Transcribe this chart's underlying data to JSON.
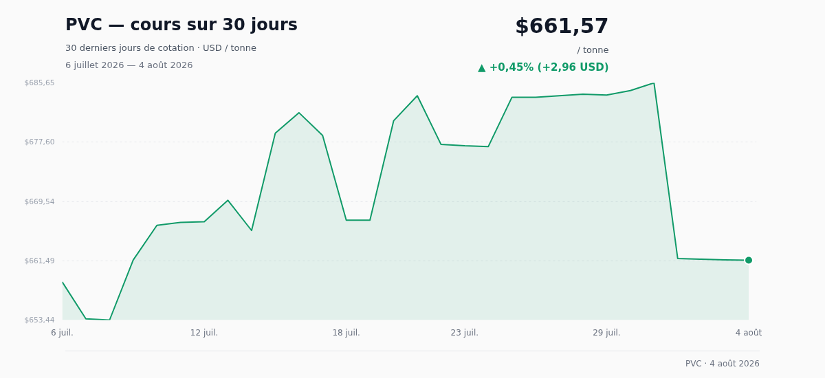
{
  "chart_data": {
    "type": "area",
    "title": "PVC — cours sur 30 jours",
    "subtitle": "30 derniers jours de cotation · USD / tonne",
    "annotations": [
      "6 juillet 2026 — 4 août 2026",
      "$661,57",
      "/ tonne",
      "▲ +0,45% (+2,96 USD)",
      "PVC · 4 août 2026"
    ],
    "x": [
      "2026-07-06",
      "2026-07-07",
      "2026-07-08",
      "2026-07-09",
      "2026-07-10",
      "2026-07-11",
      "2026-07-12",
      "2026-07-13",
      "2026-07-14",
      "2026-07-15",
      "2026-07-16",
      "2026-07-17",
      "2026-07-18",
      "2026-07-19",
      "2026-07-20",
      "2026-07-21",
      "2026-07-22",
      "2026-07-23",
      "2026-07-24",
      "2026-07-25",
      "2026-07-26",
      "2026-07-27",
      "2026-07-28",
      "2026-07-29",
      "2026-07-30",
      "2026-07-31",
      "2026-08-01",
      "2026-08-02",
      "2026-08-03",
      "2026-08-04"
    ],
    "series": [
      {
        "color": "#109a68",
        "values": [
          658.61,
          653.6,
          653.44,
          661.6,
          666.3,
          666.7,
          666.8,
          669.7,
          665.6,
          678.8,
          681.6,
          678.5,
          667.0,
          667.0,
          680.5,
          683.9,
          677.3,
          677.1,
          677.0,
          683.7,
          683.7,
          683.9,
          684.1,
          684.0,
          684.6,
          685.65,
          661.8,
          661.7,
          661.6,
          661.57
        ]
      },
      {
        "type": "scatter",
        "color": "#109a68",
        "x": [
          "2026-08-04"
        ],
        "values": [
          661.57
        ]
      }
    ],
    "xlim": [
      "2026-07-06",
      "2026-08-04T08:00"
    ],
    "xticks": [
      {
        "value": "2026-07-06",
        "label": "6 juil."
      },
      {
        "value": "2026-07-12",
        "label": "12 juil."
      },
      {
        "value": "2026-07-18",
        "label": "18 juil."
      },
      {
        "value": "2026-07-23",
        "label": "23 juil."
      },
      {
        "value": "2026-07-29",
        "label": "29 juil."
      },
      {
        "value": "2026-08-04",
        "label": "4 août"
      }
    ],
    "ylim": [
      653.44,
      685.65
    ],
    "yticks": [
      {
        "value": 653.44,
        "label": "$653,44"
      },
      {
        "value": 661.49,
        "label": "$661,49"
      },
      {
        "value": 669.54,
        "label": "$669,54"
      },
      {
        "value": 677.6,
        "label": "$677,60"
      },
      {
        "value": 685.65,
        "label": "$685,65"
      }
    ],
    "grid": "y"
  }
}
